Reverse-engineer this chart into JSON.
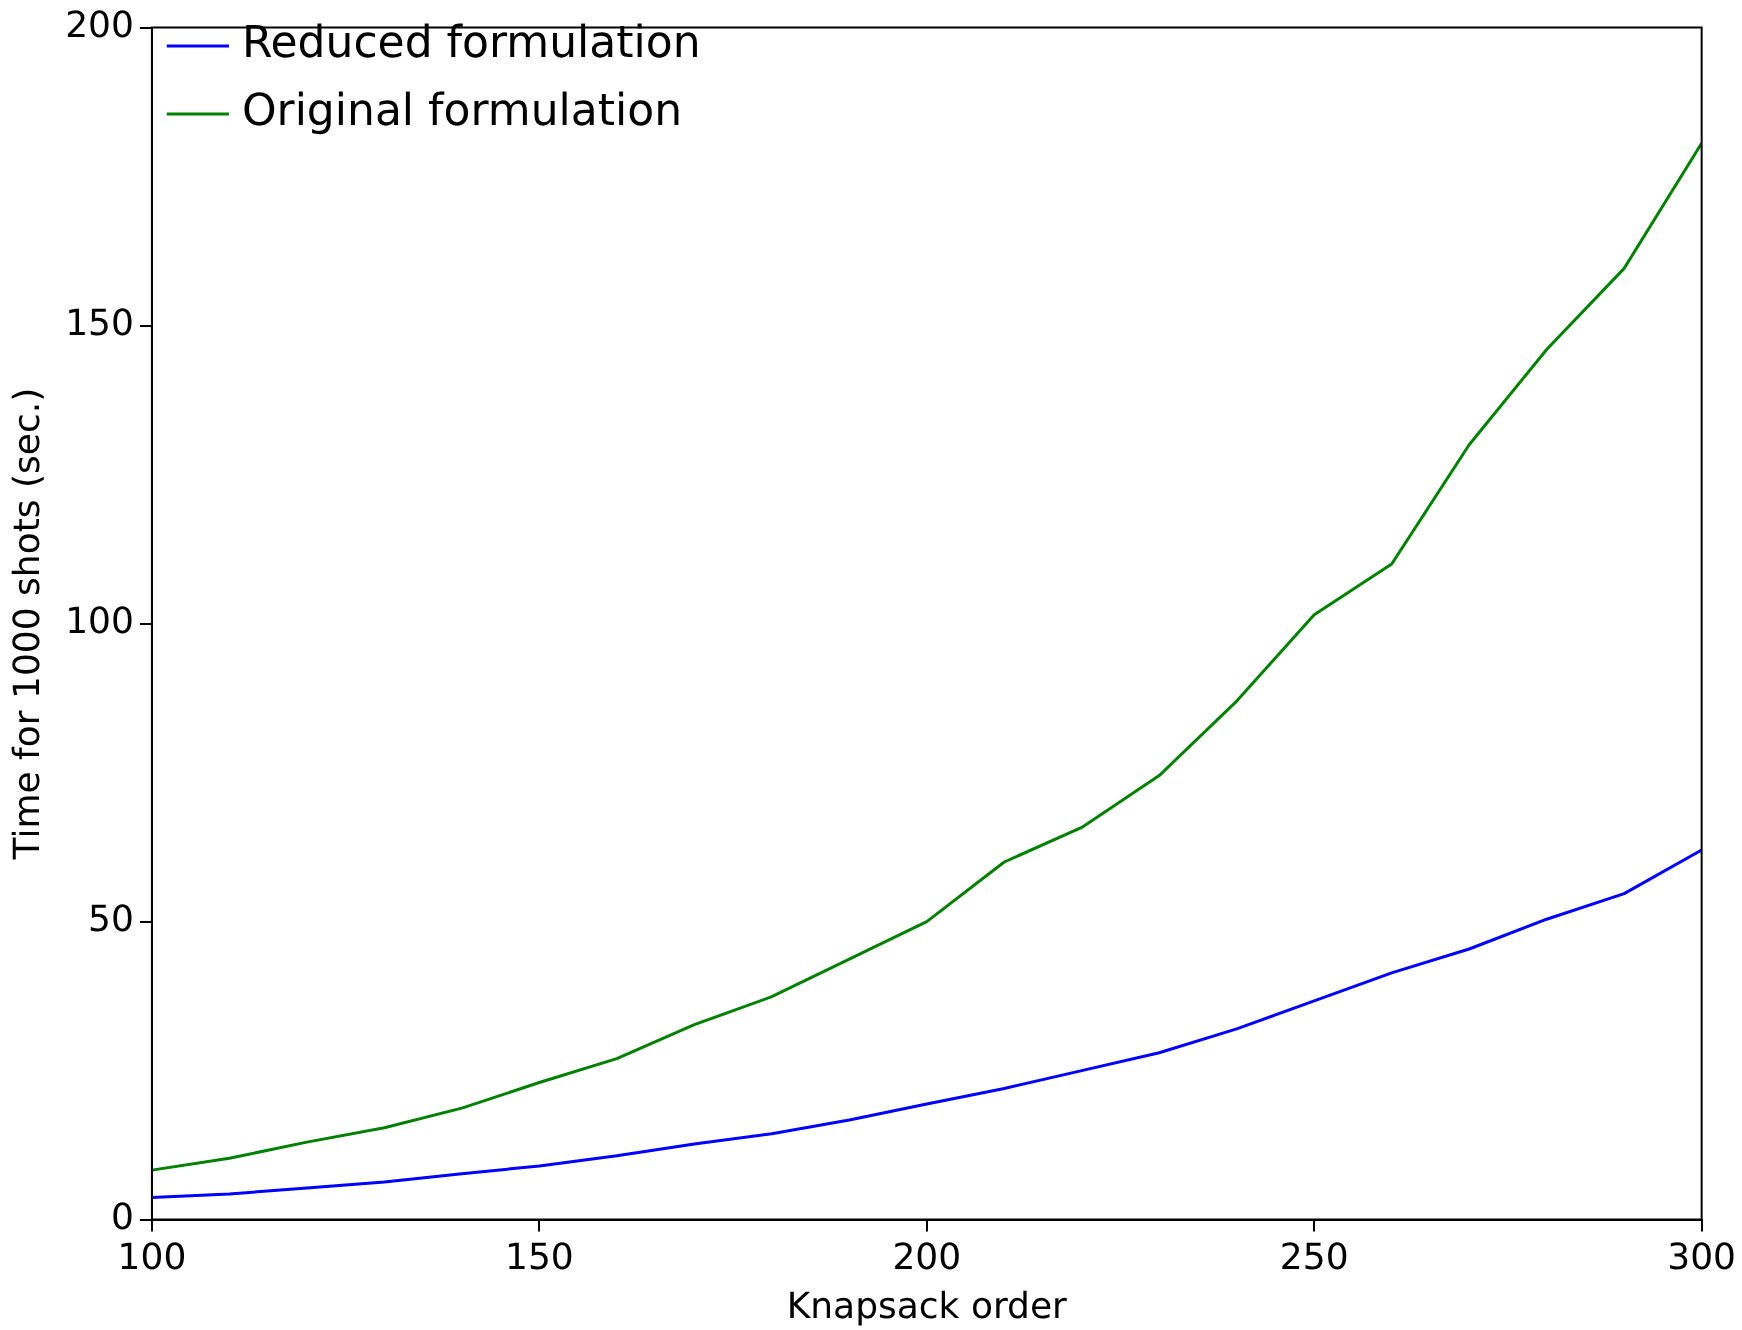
{
  "chart_data": {
    "type": "line",
    "xlabel": "Knapsack order",
    "ylabel": "Time for 1000 shots (sec.)",
    "x": [
      100,
      110,
      120,
      130,
      140,
      150,
      160,
      170,
      180,
      190,
      200,
      210,
      220,
      230,
      240,
      250,
      260,
      270,
      280,
      290,
      300
    ],
    "series": [
      {
        "name": "Reduced formulation",
        "color": "#0000ff",
        "values": [
          3.7,
          4.3,
          5.3,
          6.3,
          7.7,
          9,
          10.7,
          12.7,
          14.4,
          16.7,
          19.4,
          22,
          25,
          28,
          32,
          36.7,
          41.4,
          45.4,
          50.4,
          54.7,
          62
        ]
      },
      {
        "name": "Original formulation",
        "color": "#008000",
        "values": [
          8.3,
          10.3,
          13,
          15.4,
          18.7,
          23,
          27,
          32.7,
          37.4,
          43.7,
          50,
          60,
          65.8,
          74.5,
          87,
          101.5,
          110,
          130,
          146,
          159.6,
          180.6
        ]
      }
    ],
    "xlim": [
      100,
      300
    ],
    "xticks": [
      100,
      150,
      200,
      250,
      300
    ],
    "ylim": [
      0,
      200
    ],
    "yticks": [
      0,
      50,
      100,
      150,
      200
    ],
    "grid": false,
    "legend": "top left",
    "marker": "none",
    "line_style": "solid"
  }
}
